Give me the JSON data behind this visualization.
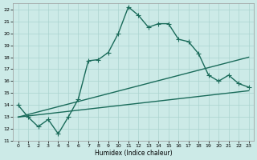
{
  "xlabel": "Humidex (Indice chaleur)",
  "background_color": "#cceae7",
  "grid_color": "#aad4d0",
  "line_color": "#1a6b5a",
  "xlim": [
    -0.5,
    23.5
  ],
  "ylim": [
    11,
    22.5
  ],
  "xticks": [
    0,
    1,
    2,
    3,
    4,
    5,
    6,
    7,
    8,
    9,
    10,
    11,
    12,
    13,
    14,
    15,
    16,
    17,
    18,
    19,
    20,
    21,
    22,
    23
  ],
  "yticks": [
    11,
    12,
    13,
    14,
    15,
    16,
    17,
    18,
    19,
    20,
    21,
    22
  ],
  "series1_x": [
    0,
    1,
    2,
    3,
    4,
    5,
    6,
    7,
    8,
    9,
    10,
    11,
    12,
    13,
    14,
    15,
    16,
    17,
    18,
    19,
    20,
    21,
    22,
    23
  ],
  "series1_y": [
    14.0,
    13.0,
    12.2,
    12.8,
    11.6,
    13.0,
    14.5,
    17.7,
    17.8,
    18.4,
    20.0,
    22.2,
    21.5,
    20.5,
    20.8,
    20.8,
    19.5,
    19.3,
    18.3,
    16.5,
    16.0,
    16.5,
    15.8,
    15.5
  ],
  "series2_x": [
    0,
    23
  ],
  "series2_y": [
    13.0,
    18.0
  ],
  "series3_x": [
    0,
    23
  ],
  "series3_y": [
    13.0,
    15.2
  ],
  "marker": "+",
  "markersize": 4,
  "linewidth": 1.0
}
